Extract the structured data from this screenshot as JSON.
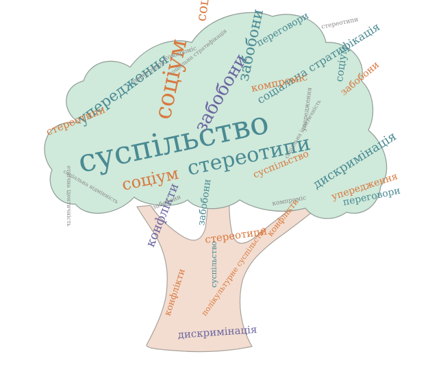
{
  "colors": {
    "crown_fill": "#cfe9da",
    "crown_stroke": "#8f9b96",
    "trunk_fill": "#f3ddd0",
    "trunk_stroke": "#a8a19b",
    "teal": "#4a8a93",
    "orange": "#d9783e",
    "purple": "#6b65a0",
    "gray": "#8a8a8a"
  },
  "words": {
    "suspilstvo": "суспільство",
    "stereotypy": "стереотипи",
    "sotsium": "соціум",
    "uperedzhennia": "упередження",
    "zaboboni": "забобони",
    "dyskryminatsiia": "дискримінація",
    "kompromis": "компроміс",
    "konflikty": "конфлікти",
    "perehovory": "переговори",
    "sotsialna_stratyfikatsiia": "соціальна стратифікація",
    "multykulturne": "полікультурне суспільство",
    "identychnist": "етнічна ідентичність",
    "vidminnist": "соціальна відмінність",
    "soc_identity": "соціальна ідентичність"
  }
}
